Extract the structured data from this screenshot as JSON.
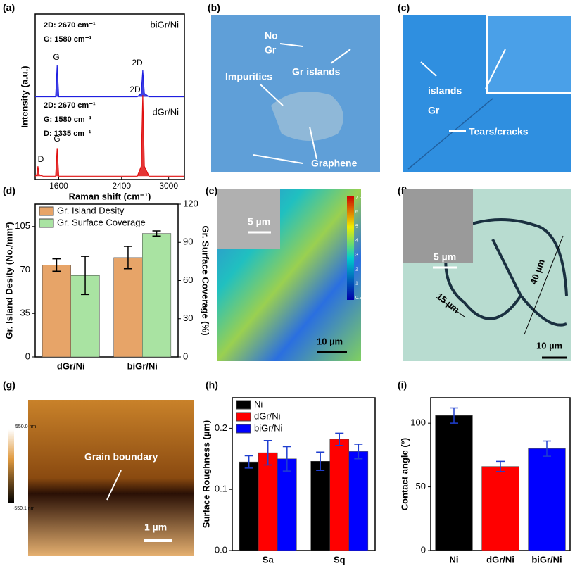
{
  "panel_labels": [
    "(a)",
    "(b)",
    "(c)",
    "(d)",
    "(e)",
    "(f)",
    "(g)",
    "(h)",
    "(i)"
  ],
  "images": {
    "b": {
      "annotations": [
        "No",
        "Gr",
        "Gr islands",
        "Impurities",
        "Graphene"
      ]
    },
    "c": {
      "annotations": [
        "Gr",
        "islands",
        "Tears/cracks"
      ]
    },
    "e": {
      "annotations": [
        "5 µm",
        "10 µm"
      ],
      "colorbar_labels": [
        "7.372µm",
        "6",
        "5",
        "4",
        "3",
        "2",
        "1",
        "0.349"
      ]
    },
    "f": {
      "annotations": [
        "5 µm",
        "15 µm",
        "40 µm",
        "10 µm"
      ]
    },
    "g": {
      "annotations": [
        "Grain boundary",
        "1 µm"
      ],
      "colorbar_labels": [
        "550.0 nm",
        "-550.1 nm"
      ]
    }
  },
  "chart_data": [
    {
      "type": "line",
      "xlabel": "Raman shift (cm⁻¹)",
      "ylabel": "Intensity (a.u.)",
      "x": [
        1300,
        1320,
        1335,
        1350,
        1400,
        1560,
        1580,
        1600,
        1700,
        2000,
        2400,
        2600,
        2650,
        2670,
        2690,
        2750,
        3000,
        3200
      ],
      "series": [
        {
          "name": "biGr/Ni",
          "color": "#1f1fe0",
          "values": [
            50,
            50,
            50,
            50,
            50,
            50,
            69,
            50,
            50,
            50,
            50,
            50,
            52,
            66,
            52,
            50,
            50,
            50
          ]
        },
        {
          "name": "dGr/Ni",
          "color": "#e01010",
          "values": [
            2,
            3,
            8,
            3,
            2,
            2,
            19,
            2,
            2,
            2,
            2,
            2,
            8,
            51,
            8,
            2,
            2,
            2
          ]
        }
      ],
      "annotations": [
        "2D: 2670 cm⁻¹",
        "G: 1580 cm⁻¹",
        "G",
        "2D",
        "2D: 2670 cm⁻¹",
        "G: 1580 cm⁻¹",
        "D: 1335 cm⁻¹",
        "D",
        "G",
        "2D"
      ],
      "xlim": [
        1300,
        3200
      ],
      "xticks": [
        1600,
        2400,
        3000
      ],
      "ylim": [
        0,
        100
      ]
    },
    {
      "type": "bar",
      "ylabel": "Gr. Island Desity (No./mm²)",
      "y2label": "Gr. Surface Coverage (%)",
      "categories": [
        "dGr/Ni",
        "biGr/Ni"
      ],
      "series": [
        {
          "name": "Gr. Island Desity",
          "color": "#e7a468",
          "values": [
            74,
            80
          ],
          "errors": [
            5,
            9
          ]
        },
        {
          "name": "Gr. Surface Coverage",
          "color": "#a9e3a2",
          "axis": "y2",
          "values": [
            64,
            97
          ],
          "errors": [
            15,
            2
          ]
        }
      ],
      "ylim": [
        0,
        123
      ],
      "yticks": [
        0,
        35,
        70,
        105
      ],
      "y2lim": [
        0,
        120
      ],
      "y2ticks": [
        0,
        30,
        60,
        90,
        120
      ],
      "legend": "upper left"
    },
    {
      "type": "bar",
      "ylabel": "Surface Roughness (µm)",
      "categories": [
        "Sa",
        "Sq"
      ],
      "series": [
        {
          "name": "Ni",
          "color": "#000000",
          "values": [
            0.145,
            0.146
          ],
          "errors": [
            0.01,
            0.015
          ]
        },
        {
          "name": "dGr/Ni",
          "color": "#ff0000",
          "values": [
            0.16,
            0.182
          ],
          "errors": [
            0.02,
            0.01
          ]
        },
        {
          "name": "biGr/Ni",
          "color": "#0000ff",
          "values": [
            0.15,
            0.162
          ],
          "errors": [
            0.02,
            0.012
          ]
        }
      ],
      "ylim": [
        0,
        0.25
      ],
      "yticks": [
        {
          "value": 0,
          "label": "0.0"
        },
        0.1,
        0.2
      ],
      "legend": "upper left"
    },
    {
      "type": "bar",
      "ylabel": "Contact angle (°)",
      "categories": [
        "Ni",
        "dGr/Ni",
        "biGr/Ni"
      ],
      "series": [
        {
          "colors": [
            "#000000",
            "#ff0000",
            "#0000ff"
          ],
          "values": [
            106,
            66,
            80
          ],
          "errors": [
            6,
            4,
            6
          ]
        }
      ],
      "ylim": [
        0,
        120
      ],
      "yticks": [
        0,
        50,
        100
      ]
    }
  ]
}
